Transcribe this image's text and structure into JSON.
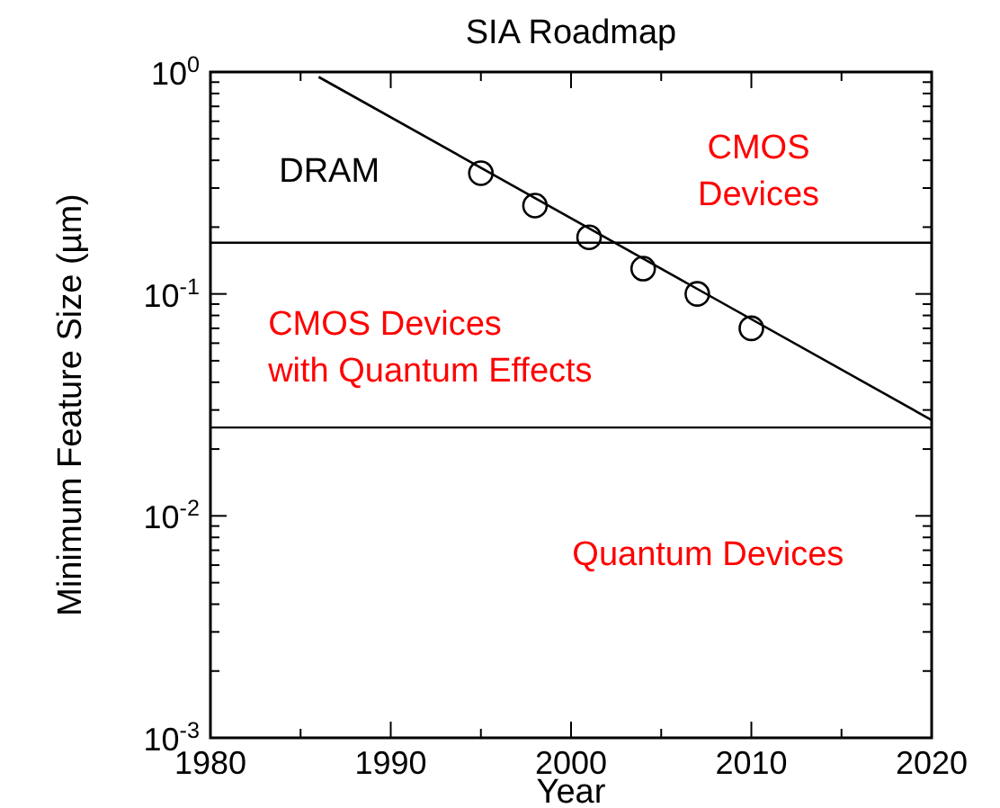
{
  "chart_data": {
    "type": "scatter",
    "title": "SIA Roadmap",
    "xlabel": "Year",
    "ylabel": "Minimum Feature Size (µm)",
    "log": "y",
    "xlim": [
      1980,
      2020
    ],
    "ylim": [
      0.001,
      1
    ],
    "xticks": [
      1980,
      {
        "value": 1985,
        "label": null
      },
      1990,
      {
        "value": 1995,
        "label": null
      },
      2000,
      {
        "value": 2005,
        "label": null
      },
      2010,
      {
        "value": 2015,
        "label": null
      },
      2020
    ],
    "yticks": [
      {
        "value": 0.001,
        "label": "10$^{-3}$"
      },
      {
        "value": 0.002,
        "label": null
      },
      {
        "value": 0.003,
        "label": null
      },
      {
        "value": 0.004,
        "label": null
      },
      {
        "value": 0.005,
        "label": null
      },
      {
        "value": 0.006,
        "label": null
      },
      {
        "value": 0.007,
        "label": null
      },
      {
        "value": 0.008,
        "label": null
      },
      {
        "value": 0.009,
        "label": null
      },
      {
        "value": 0.01,
        "label": "10$^{-2}$"
      },
      {
        "value": 0.02,
        "label": null
      },
      {
        "value": 0.03,
        "label": null
      },
      {
        "value": 0.04,
        "label": null
      },
      {
        "value": 0.05,
        "label": null
      },
      {
        "value": 0.06,
        "label": null
      },
      {
        "value": 0.07,
        "label": null
      },
      {
        "value": 0.08,
        "label": null
      },
      {
        "value": 0.09,
        "label": null
      },
      {
        "value": 0.1,
        "label": "10$^{-1}$"
      },
      {
        "value": 0.2,
        "label": null
      },
      {
        "value": 0.3,
        "label": null
      },
      {
        "value": 0.4,
        "label": null
      },
      {
        "value": 0.5,
        "label": null
      },
      {
        "value": 0.6,
        "label": null
      },
      {
        "value": 0.7,
        "label": null
      },
      {
        "value": 0.8,
        "label": null
      },
      {
        "value": 0.9,
        "label": null
      },
      {
        "value": 1,
        "label": "10$^{0}$"
      }
    ],
    "series": [
      {
        "marker": "circle",
        "color": "#000000",
        "x": [
          1995,
          1998,
          2001,
          2004,
          2007,
          2010
        ],
        "values": [
          0.35,
          0.25,
          0.18,
          0.13,
          0.1,
          0.07
        ]
      },
      {
        "type": "line",
        "color": "#000000",
        "marker": "none",
        "x": [
          1986,
          2020
        ],
        "values": [
          0.95,
          0.027
        ]
      }
    ],
    "ref_lines": [
      {
        "axis": "y",
        "value": 0.17,
        "color": "#000000"
      },
      {
        "axis": "y",
        "value": 0.025,
        "color": "#000000"
      }
    ],
    "annotations": [
      "DRAM",
      "CMOS\nDevices",
      "CMOS Devices\nwith Quantum Effects",
      "Quantum Devices"
    ]
  }
}
